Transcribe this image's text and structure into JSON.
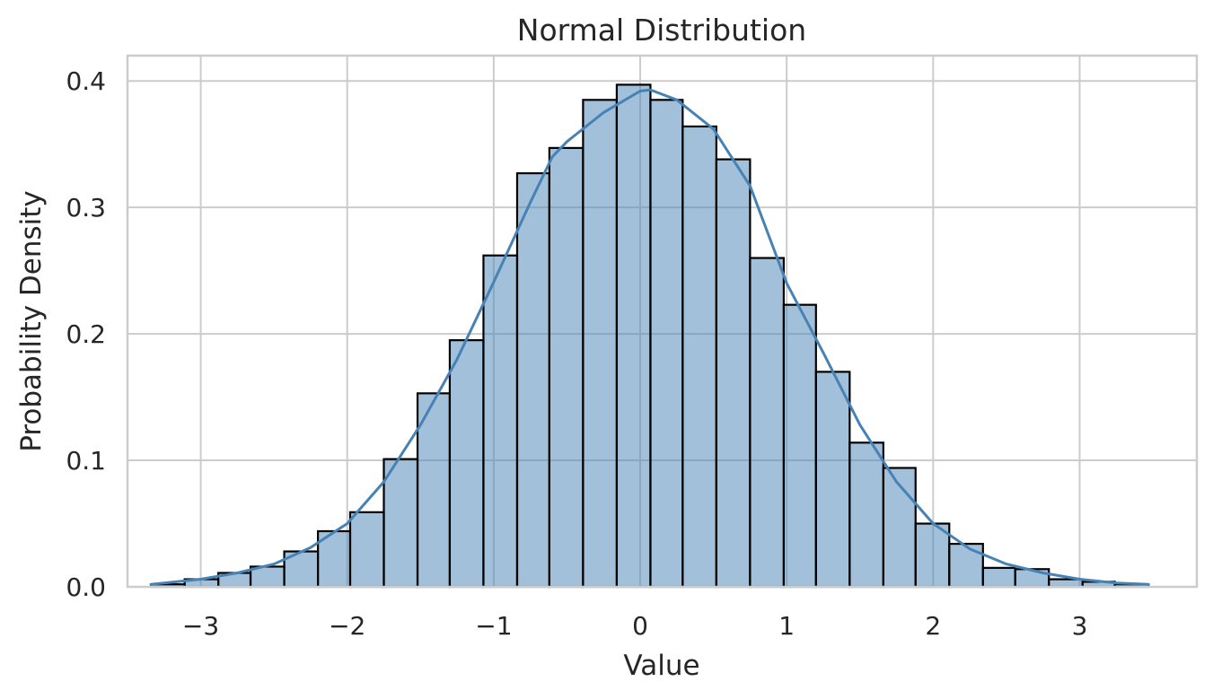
{
  "chart_data": {
    "type": "bar",
    "title": "Normal Distribution",
    "xlabel": "Value",
    "ylabel": "Probability Density",
    "xlim": [
      -3.5,
      3.8
    ],
    "ylim": [
      0.0,
      0.42
    ],
    "grid": true,
    "x_ticks": [
      -3,
      -2,
      -1,
      0,
      1,
      2,
      3
    ],
    "x_tick_labels": [
      "−3",
      "−2",
      "−1",
      "0",
      "1",
      "2",
      "3"
    ],
    "y_ticks": [
      0.0,
      0.1,
      0.2,
      0.3,
      0.4
    ],
    "y_tick_labels": [
      "0.0",
      "0.1",
      "0.2",
      "0.3",
      "0.4"
    ],
    "bar_color": "#4682b4",
    "bar_edge_color": "#000000",
    "kde_color": "#4682b4",
    "bin_edges": [
      -3.34,
      -3.11,
      -2.88,
      -2.66,
      -2.43,
      -2.2,
      -1.98,
      -1.75,
      -1.52,
      -1.3,
      -1.07,
      -0.84,
      -0.62,
      -0.39,
      -0.16,
      0.07,
      0.29,
      0.52,
      0.75,
      0.98,
      1.2,
      1.43,
      1.66,
      1.88,
      2.11,
      2.34,
      2.56,
      2.79,
      3.02,
      3.24,
      3.47
    ],
    "values": [
      0.002,
      0.006,
      0.011,
      0.016,
      0.028,
      0.044,
      0.059,
      0.101,
      0.153,
      0.195,
      0.262,
      0.327,
      0.347,
      0.385,
      0.397,
      0.385,
      0.364,
      0.338,
      0.26,
      0.223,
      0.17,
      0.114,
      0.094,
      0.05,
      0.034,
      0.015,
      0.014,
      0.006,
      0.004,
      0.002
    ],
    "kde": {
      "name": "",
      "x": [
        -3.34,
        -3.0,
        -2.75,
        -2.5,
        -2.25,
        -2.0,
        -1.75,
        -1.5,
        -1.25,
        -1.0,
        -0.75,
        -0.6,
        -0.5,
        -0.25,
        0.0,
        0.07,
        0.25,
        0.5,
        0.75,
        1.0,
        1.25,
        1.5,
        1.75,
        2.0,
        2.25,
        2.5,
        2.75,
        3.0,
        3.25,
        3.47
      ],
      "y": [
        0.002,
        0.006,
        0.011,
        0.018,
        0.031,
        0.05,
        0.083,
        0.128,
        0.18,
        0.241,
        0.304,
        0.34,
        0.352,
        0.375,
        0.392,
        0.393,
        0.385,
        0.362,
        0.317,
        0.24,
        0.185,
        0.128,
        0.083,
        0.05,
        0.03,
        0.018,
        0.011,
        0.006,
        0.003,
        0.002
      ]
    }
  }
}
